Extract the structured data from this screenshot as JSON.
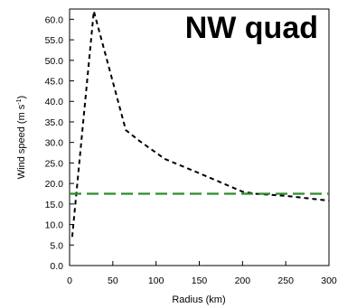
{
  "chart_data": {
    "type": "line",
    "title": "NW quad",
    "xlabel": "Radius (km)",
    "ylabel_main": "Wind speed (m s",
    "ylabel_sup": "-1",
    "ylabel_close": ")",
    "xlim": [
      0,
      300
    ],
    "ylim": [
      0,
      62.5
    ],
    "xticks": [
      "0",
      "50",
      "100",
      "150",
      "200",
      "250",
      "300"
    ],
    "xtick_values": [
      0,
      50,
      100,
      150,
      200,
      250,
      300
    ],
    "yticks": [
      "0.0",
      "5.0",
      "10.0",
      "15.0",
      "20.0",
      "25.0",
      "30.0",
      "35.0",
      "40.0",
      "45.0",
      "50.0",
      "55.0",
      "60.0"
    ],
    "ytick_values": [
      0,
      5,
      10,
      15,
      20,
      25,
      30,
      35,
      40,
      45,
      50,
      55,
      60
    ],
    "grid": false,
    "series": [
      {
        "color": "#000000",
        "dash": "short",
        "x": [
          3,
          28,
          65,
          80,
          110,
          150,
          200,
          215,
          250,
          300
        ],
        "y": [
          7.0,
          62.0,
          33.0,
          30.5,
          26.0,
          22.5,
          18.0,
          17.5,
          17.0,
          15.8
        ]
      },
      {
        "color": "#2e8b2e",
        "dash": "long",
        "x": [
          0,
          300
        ],
        "y": [
          17.5,
          17.5
        ]
      }
    ]
  }
}
